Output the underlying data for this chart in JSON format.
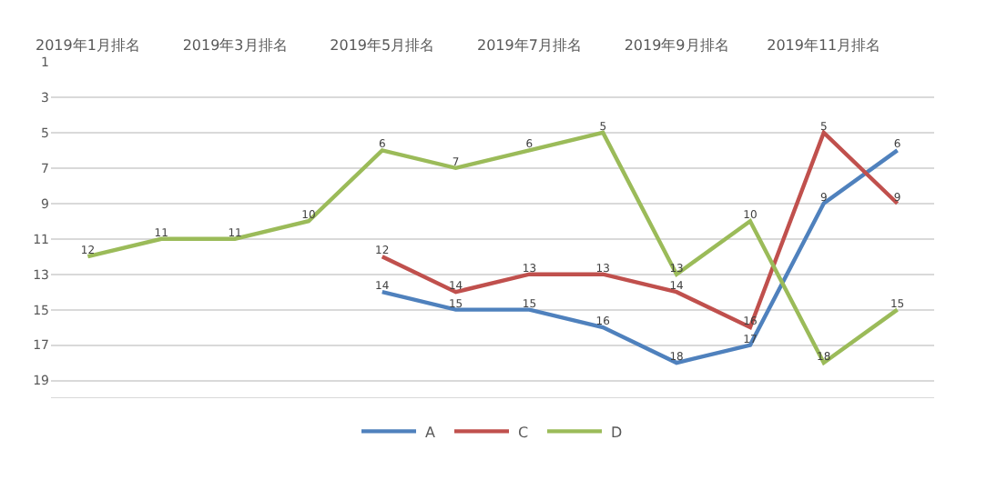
{
  "chart_data": {
    "type": "line",
    "categories": [
      "2019年1月排名",
      null,
      "2019年3月排名",
      null,
      "2019年5月排名",
      null,
      "2019年7月排名",
      null,
      "2019年9月排名",
      null,
      "2019年11月排名",
      null
    ],
    "series": [
      {
        "name": "A",
        "color": "#4f81bd",
        "values": [
          null,
          null,
          null,
          null,
          14,
          15,
          15,
          16,
          18,
          17,
          9,
          6
        ]
      },
      {
        "name": "C",
        "color": "#c0504d",
        "values": [
          null,
          null,
          null,
          null,
          12,
          14,
          13,
          13,
          14,
          16,
          5,
          9
        ]
      },
      {
        "name": "D",
        "color": "#9bbb59",
        "values": [
          12,
          11,
          11,
          10,
          6,
          7,
          6,
          5,
          13,
          10,
          18,
          15
        ]
      }
    ],
    "ylim": [
      20,
      1
    ],
    "yticks": [
      1,
      3,
      5,
      7,
      9,
      11,
      13,
      15,
      17,
      19
    ],
    "grid": "y",
    "legend": "bottom",
    "data_labels": true,
    "marker": "none",
    "line_style": "solid"
  }
}
